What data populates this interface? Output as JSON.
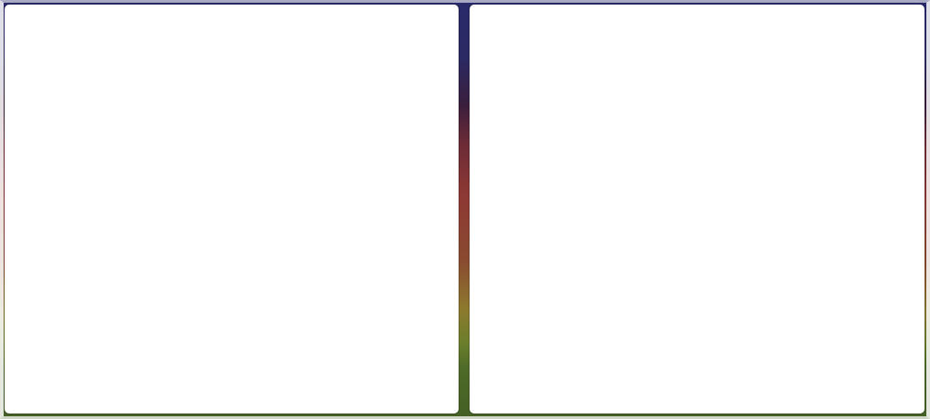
{
  "app": {
    "background_gradient": [
      "#2a2a6c",
      "#3a1e3c",
      "#8e3934",
      "#8c7a2e",
      "#445f24"
    ]
  },
  "panels": {
    "left": {
      "title": ""
    },
    "right": {
      "title": ""
    }
  }
}
